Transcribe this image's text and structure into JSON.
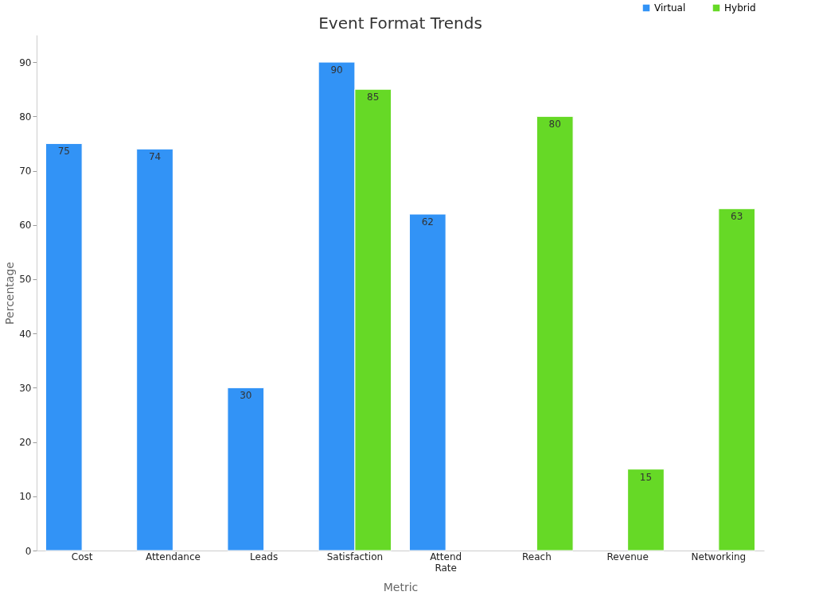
{
  "chart_data": {
    "type": "bar",
    "title": "Event Format Trends",
    "xlabel": "Metric",
    "ylabel": "Percentage",
    "categories": [
      "Cost",
      "Attendance",
      "Leads",
      "Satisfaction",
      "Attend Rate",
      "Reach",
      "Revenue",
      "Networking"
    ],
    "series": [
      {
        "name": "Virtual",
        "color": "#3293f6",
        "values": [
          75,
          74,
          30,
          90,
          62,
          null,
          null,
          null
        ]
      },
      {
        "name": "Hybrid",
        "color": "#66d926",
        "values": [
          null,
          null,
          null,
          85,
          null,
          80,
          15,
          63
        ]
      }
    ],
    "ylim": [
      0,
      95
    ],
    "yticks": [
      0,
      10,
      20,
      30,
      40,
      50,
      60,
      70,
      80,
      90
    ],
    "grid": false,
    "legend": "top right",
    "data_labels": true
  }
}
